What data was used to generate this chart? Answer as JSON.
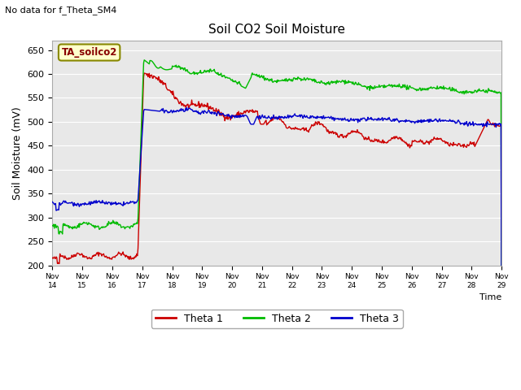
{
  "title": "Soil CO2 Soil Moisture",
  "ylabel": "Soil Moisture (mV)",
  "xlabel": "Time",
  "top_left_note": "No data for f_Theta_SM4",
  "legend_label": "TA_soilco2",
  "ylim": [
    200,
    670
  ],
  "yticks": [
    200,
    250,
    300,
    350,
    400,
    450,
    500,
    550,
    600,
    650
  ],
  "background_color": "#e8e8e8",
  "xtick_labels": [
    "Nov 14",
    "Nov 15",
    "Nov 16",
    "Nov 17",
    "Nov 18",
    "Nov 19",
    "Nov 20",
    "Nov 21",
    "Nov 22",
    "Nov 23",
    "Nov 24",
    "Nov 25",
    "Nov 26",
    "Nov 27",
    "Nov 28",
    "Nov 29"
  ],
  "theta1_color": "#cc0000",
  "theta2_color": "#00bb00",
  "theta3_color": "#0000cc",
  "legend_entries": [
    "Theta 1",
    "Theta 2",
    "Theta 3"
  ]
}
